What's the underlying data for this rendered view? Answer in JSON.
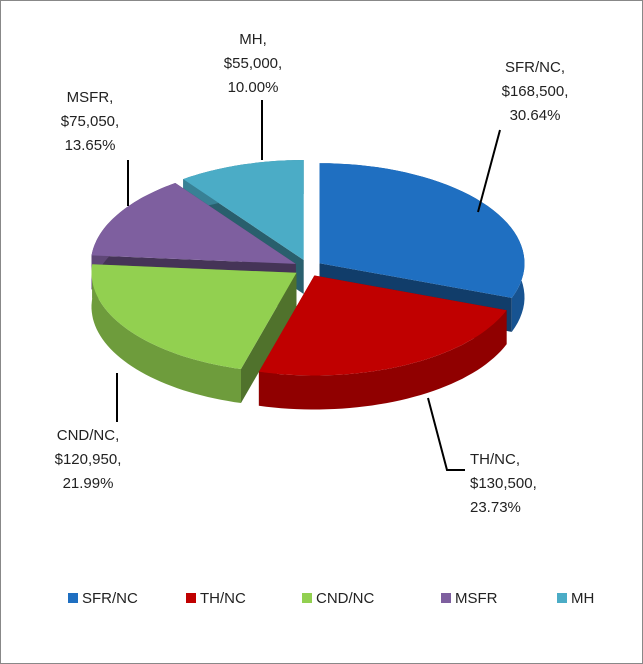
{
  "chart_data": {
    "type": "pie",
    "categories": [
      "SFR/NC",
      "TH/NC",
      "CND/NC",
      "MSFR",
      "MH"
    ],
    "values": [
      168500,
      130500,
      120950,
      75050,
      55000
    ],
    "value_labels": [
      "$168,500",
      "$130,500",
      "$120,950",
      "$75,050",
      "$55,000"
    ],
    "percentages": [
      30.64,
      23.73,
      21.99,
      13.65,
      10.0
    ],
    "percentage_labels": [
      "30.64%",
      "23.73%",
      "21.99%",
      "13.65%",
      "10.00%"
    ],
    "colors": [
      "#1f6fc1",
      "#c00000",
      "#92d050",
      "#7e5f9f",
      "#4bacc6"
    ],
    "legend": "bottom"
  }
}
